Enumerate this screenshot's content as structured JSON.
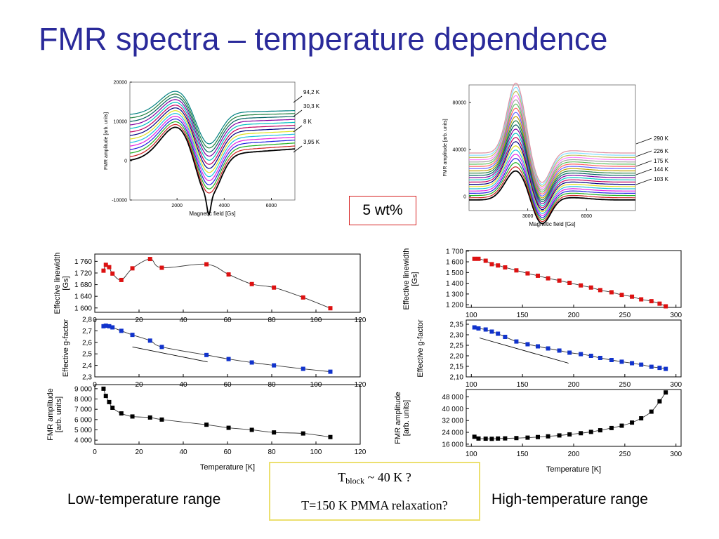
{
  "slide": {
    "title": "FMR spectra – temperature dependence",
    "concentration_label": "5 wt%",
    "caption_left": "Low-temperature range",
    "caption_right": "High-temperature range",
    "note_tblock_main": "T",
    "note_tblock_sub": "block",
    "note_tblock_rest": " ~ 40 K ?",
    "note_pmma": "T=150 K PMMA relaxation?"
  },
  "chart_data": [
    {
      "id": "spectra-low",
      "type": "line",
      "xlabel": "Magnetic field [Gs]",
      "ylabel": "FMR amplitude [arb. units]",
      "xlim": [
        0,
        7000
      ],
      "ylim": [
        -10000,
        20000
      ],
      "xticks": [
        2000,
        4000,
        6000
      ],
      "yticks": [
        -10000,
        0,
        10000,
        20000
      ],
      "annotations": [
        "94,2 K",
        "30,3 K",
        "8 K",
        "3,95 K"
      ],
      "colors": [
        "#000000",
        "#cc2020",
        "#20b020",
        "#2020e0",
        "#e020e0",
        "#20c0e0",
        "#e0e020",
        "#000080",
        "#c00060",
        "#00c0c0",
        "#8000a0",
        "#006060",
        "#208040",
        "#008080"
      ],
      "series": [
        {
          "offset": 0
        },
        {
          "offset": 900
        },
        {
          "offset": 1800
        },
        {
          "offset": 2700
        },
        {
          "offset": 3600
        },
        {
          "offset": 4500
        },
        {
          "offset": 5400
        },
        {
          "offset": 6300
        },
        {
          "offset": 7200
        },
        {
          "offset": 8100
        },
        {
          "offset": 9000
        },
        {
          "offset": 9900
        },
        {
          "offset": 10800
        },
        {
          "offset": 11700
        }
      ]
    },
    {
      "id": "spectra-high",
      "type": "line",
      "xlabel": "Magnetic field [Gs]",
      "ylabel": "FMR amplitude [arb. units]",
      "xlim": [
        0,
        8500
      ],
      "ylim": [
        -12000,
        95000
      ],
      "xticks": [
        3000,
        6000
      ],
      "yticks": [
        0,
        40000,
        80000
      ],
      "annotations": [
        "290 K",
        "226 K",
        "175 K",
        "144 K",
        "103 K"
      ],
      "colors": [
        "#000000",
        "#cc2020",
        "#20b020",
        "#2020e0",
        "#e020e0",
        "#20c0e0",
        "#e0e020",
        "#000080",
        "#c00060",
        "#00c0c0",
        "#8000a0",
        "#006060",
        "#208040",
        "#c0a000",
        "#6060ff",
        "#ff6060",
        "#60c060",
        "#a0a0a0",
        "#ff80ff",
        "#c0c060",
        "#80e0ff",
        "#e090a0"
      ],
      "series_count": 22
    },
    {
      "id": "low-linewidth",
      "type": "line",
      "ylabel": "Effective linewidth [Gs]",
      "xlim": [
        0,
        120
      ],
      "ylim": [
        1585,
        1785
      ],
      "yticks": [
        1600,
        1640,
        1680,
        1720,
        1760
      ],
      "ytick_labels": [
        "1 600",
        "1 640",
        "1 680",
        "1 720",
        "1 760"
      ],
      "xticks": [
        0,
        20,
        40,
        60,
        80,
        100,
        120
      ],
      "marker_color": "#dd1111",
      "x": [
        3.95,
        5,
        6.5,
        8,
        12,
        17,
        25,
        30.3,
        50.5,
        60.5,
        71,
        81,
        94.2,
        106.5
      ],
      "y": [
        1728,
        1748,
        1740,
        1718,
        1696,
        1736,
        1768,
        1738,
        1750,
        1715,
        1682,
        1670,
        1636,
        1599
      ]
    },
    {
      "id": "low-gfactor",
      "type": "line",
      "ylabel": "Effective g-factor",
      "xlim": [
        0,
        120
      ],
      "ylim": [
        2.3,
        2.8
      ],
      "yticks": [
        2.3,
        2.4,
        2.5,
        2.6,
        2.7,
        2.8
      ],
      "ytick_labels": [
        "2,3",
        "2,4",
        "2,5",
        "2,6",
        "2,7",
        "2,8"
      ],
      "xticks": [
        0,
        20,
        40,
        60,
        80,
        100,
        120
      ],
      "marker_color": "#1133cc",
      "x": [
        3.95,
        5,
        6.5,
        8,
        12,
        17,
        25,
        30.3,
        50.5,
        60.5,
        71,
        81,
        94.2,
        106.5
      ],
      "y": [
        2.74,
        2.745,
        2.74,
        2.73,
        2.7,
        2.665,
        2.615,
        2.56,
        2.49,
        2.455,
        2.425,
        2.4,
        2.37,
        2.345
      ],
      "guide_lines": [
        {
          "x": [
            17,
            51
          ],
          "y": [
            2.56,
            2.43
          ]
        }
      ]
    },
    {
      "id": "low-amplitude",
      "type": "line",
      "ylabel": "FMR amplitude [arb. units]",
      "xlabel": "Temperature [K]",
      "xlim": [
        0,
        120
      ],
      "ylim": [
        3600,
        9400
      ],
      "yticks": [
        4000,
        5000,
        6000,
        7000,
        8000,
        9000
      ],
      "ytick_labels": [
        "4 000",
        "5 000",
        "6 000",
        "7 000",
        "8 000",
        "9 000"
      ],
      "xticks": [
        0,
        20,
        40,
        60,
        80,
        100,
        120
      ],
      "marker_color": "#000000",
      "x": [
        3.95,
        5,
        6.5,
        8,
        12,
        17,
        25,
        30.3,
        50.5,
        60.5,
        71,
        81,
        94.2,
        106.5
      ],
      "y": [
        9000,
        8300,
        7700,
        7150,
        6600,
        6300,
        6200,
        6000,
        5500,
        5200,
        5000,
        4750,
        4650,
        4300
      ]
    },
    {
      "id": "high-linewidth",
      "type": "line",
      "ylabel": "Effective linewidth [Gs]",
      "xlim": [
        95,
        305
      ],
      "ylim": [
        1175,
        1705
      ],
      "yticks": [
        1200,
        1300,
        1400,
        1500,
        1600,
        1700
      ],
      "ytick_labels": [
        "1 200",
        "1 300",
        "1 400",
        "1 500",
        "1 600",
        "1 700"
      ],
      "xticks": [
        100,
        150,
        200,
        250,
        300
      ],
      "marker_color": "#dd1111",
      "x": [
        103,
        107,
        114,
        120,
        126,
        133,
        144,
        155,
        165,
        175,
        186,
        196,
        207,
        217,
        226,
        237,
        247,
        257,
        266,
        276,
        284,
        290
      ],
      "y": [
        1628,
        1628,
        1610,
        1578,
        1566,
        1548,
        1520,
        1492,
        1470,
        1446,
        1425,
        1404,
        1380,
        1360,
        1336,
        1316,
        1292,
        1275,
        1250,
        1233,
        1210,
        1185
      ]
    },
    {
      "id": "high-gfactor",
      "type": "line",
      "ylabel": "Effective g-factor",
      "xlim": [
        95,
        305
      ],
      "ylim": [
        2.1,
        2.37
      ],
      "yticks": [
        2.1,
        2.15,
        2.2,
        2.25,
        2.3,
        2.35
      ],
      "ytick_labels": [
        "2,10",
        "2,15",
        "2,20",
        "2,25",
        "2,30",
        "2,35"
      ],
      "xticks": [
        100,
        150,
        200,
        250,
        300
      ],
      "marker_color": "#1133cc",
      "x": [
        103,
        107,
        114,
        120,
        126,
        133,
        144,
        155,
        165,
        175,
        186,
        196,
        207,
        217,
        226,
        237,
        247,
        257,
        266,
        276,
        284,
        290
      ],
      "y": [
        2.335,
        2.33,
        2.325,
        2.315,
        2.305,
        2.29,
        2.268,
        2.255,
        2.245,
        2.235,
        2.225,
        2.215,
        2.208,
        2.2,
        2.19,
        2.18,
        2.172,
        2.165,
        2.158,
        2.148,
        2.143,
        2.138
      ],
      "guide_lines": [
        {
          "x": [
            108,
            195
          ],
          "y": [
            2.285,
            2.165
          ]
        }
      ]
    },
    {
      "id": "high-amplitude",
      "type": "line",
      "ylabel": "FMR amplitude [arb. units]",
      "xlabel": "Temperature [K]",
      "xlim": [
        95,
        305
      ],
      "ylim": [
        14500,
        53000
      ],
      "yticks": [
        16000,
        24000,
        32000,
        40000,
        48000
      ],
      "ytick_labels": [
        "16 000",
        "24 000",
        "32 000",
        "40 000",
        "48 000"
      ],
      "xticks": [
        100,
        150,
        200,
        250,
        300
      ],
      "marker_color": "#000000",
      "x": [
        103,
        107,
        114,
        120,
        126,
        133,
        144,
        155,
        165,
        175,
        186,
        196,
        207,
        217,
        226,
        237,
        247,
        257,
        266,
        276,
        284,
        290
      ],
      "y": [
        21000,
        19800,
        19700,
        19600,
        19800,
        19900,
        20100,
        20400,
        20800,
        21300,
        21900,
        22600,
        23400,
        24300,
        25400,
        26900,
        28500,
        30600,
        33500,
        38000,
        45000,
        51000
      ]
    }
  ]
}
